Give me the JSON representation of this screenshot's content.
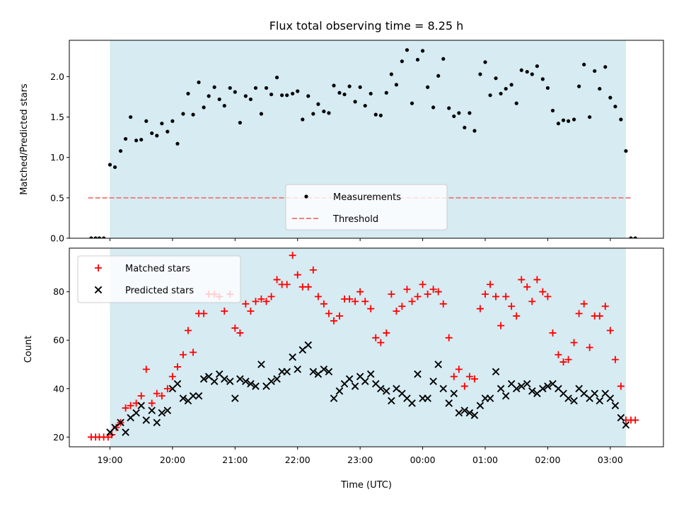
{
  "chart_data": [
    {
      "type": "scatter",
      "title": "Flux total observing time = 8.25 h",
      "ylabel": "Matched/Predicted stars",
      "xlabel": "",
      "xlim": [
        18.35,
        27.85
      ],
      "ylim": [
        0,
        2.45
      ],
      "yticks": [
        "0.0",
        "0.5",
        "1.0",
        "1.5",
        "2.0"
      ],
      "ytick_values": [
        0,
        0.5,
        1.0,
        1.5,
        2.0
      ],
      "shaded_span": [
        19.0,
        27.25
      ],
      "grid": false,
      "legend_position": "lower center",
      "series": [
        {
          "name": "Measurements",
          "style": "dot",
          "color": "#000000",
          "x": [
            18.7,
            18.77,
            18.83,
            18.9,
            19.0,
            19.08,
            19.17,
            19.25,
            19.33,
            19.42,
            19.5,
            19.58,
            19.67,
            19.75,
            19.83,
            19.92,
            20.0,
            20.08,
            20.17,
            20.25,
            20.33,
            20.42,
            20.5,
            20.58,
            20.67,
            20.75,
            20.83,
            20.92,
            21.0,
            21.08,
            21.17,
            21.25,
            21.33,
            21.42,
            21.5,
            21.58,
            21.67,
            21.75,
            21.83,
            21.92,
            22.0,
            22.08,
            22.17,
            22.25,
            22.33,
            22.42,
            22.5,
            22.58,
            22.67,
            22.75,
            22.83,
            22.92,
            23.0,
            23.08,
            23.17,
            23.25,
            23.33,
            23.42,
            23.5,
            23.58,
            23.67,
            23.75,
            23.83,
            23.92,
            24.0,
            24.08,
            24.17,
            24.25,
            24.33,
            24.42,
            24.5,
            24.58,
            24.67,
            24.75,
            24.83,
            24.92,
            25.0,
            25.08,
            25.17,
            25.25,
            25.33,
            25.42,
            25.5,
            25.58,
            25.67,
            25.75,
            25.83,
            25.92,
            26.0,
            26.08,
            26.17,
            26.25,
            26.33,
            26.42,
            26.5,
            26.58,
            26.67,
            26.75,
            26.83,
            26.92,
            27.0,
            27.08,
            27.17,
            27.25,
            27.33,
            27.4
          ],
          "y": [
            0,
            0,
            0,
            0,
            0.91,
            0.88,
            1.08,
            1.23,
            1.5,
            1.21,
            1.22,
            1.45,
            1.3,
            1.27,
            1.42,
            1.32,
            1.45,
            1.17,
            1.54,
            1.79,
            1.53,
            1.93,
            1.62,
            1.76,
            1.87,
            1.72,
            1.64,
            1.86,
            1.81,
            1.43,
            1.76,
            1.72,
            1.86,
            1.54,
            1.86,
            1.78,
            1.99,
            1.77,
            1.77,
            1.79,
            1.82,
            1.47,
            1.76,
            1.54,
            1.66,
            1.57,
            1.55,
            1.89,
            1.8,
            1.78,
            1.88,
            1.69,
            1.87,
            1.64,
            1.79,
            1.53,
            1.52,
            1.8,
            2.03,
            1.9,
            2.19,
            2.33,
            1.67,
            2.21,
            2.32,
            1.87,
            1.62,
            2.01,
            2.22,
            1.61,
            1.51,
            1.55,
            1.37,
            1.55,
            1.33,
            2.03,
            2.18,
            1.77,
            1.98,
            1.79,
            1.85,
            1.9,
            1.67,
            2.08,
            2.06,
            2.03,
            2.13,
            1.97,
            1.86,
            1.58,
            1.42,
            1.46,
            1.45,
            1.47,
            1.88,
            2.15,
            1.5,
            2.07,
            1.85,
            2.12,
            1.74,
            1.63,
            1.47,
            1.08,
            0,
            0
          ]
        },
        {
          "name": "Threshold",
          "style": "dashed-line",
          "color": "#f08080",
          "x": [
            18.65,
            27.35
          ],
          "y": [
            0.5,
            0.5
          ]
        }
      ]
    },
    {
      "type": "scatter",
      "title": "",
      "xlabel": "Time (UTC)",
      "ylabel": "Count",
      "xlim": [
        18.35,
        27.85
      ],
      "ylim": [
        16,
        98
      ],
      "xticks": [
        "19:00",
        "20:00",
        "21:00",
        "22:00",
        "23:00",
        "00:00",
        "01:00",
        "02:00",
        "03:00"
      ],
      "xtick_values": [
        19,
        20,
        21,
        22,
        23,
        24,
        25,
        26,
        27
      ],
      "yticks": [
        "20",
        "40",
        "60",
        "80"
      ],
      "ytick_values": [
        20,
        40,
        60,
        80
      ],
      "shaded_span": [
        19.0,
        27.25
      ],
      "grid": false,
      "legend_position": "upper left",
      "series": [
        {
          "name": "Matched stars",
          "style": "plus",
          "color": "#ff0000",
          "x": [
            18.7,
            18.77,
            18.83,
            18.9,
            18.97,
            19.03,
            19.1,
            19.17,
            19.25,
            19.33,
            19.42,
            19.5,
            19.58,
            19.67,
            19.75,
            19.83,
            19.92,
            20.0,
            20.08,
            20.17,
            20.25,
            20.33,
            20.42,
            20.5,
            20.58,
            20.67,
            20.75,
            20.83,
            20.92,
            21.0,
            21.08,
            21.17,
            21.25,
            21.33,
            21.42,
            21.5,
            21.58,
            21.67,
            21.75,
            21.83,
            21.92,
            22.0,
            22.08,
            22.17,
            22.25,
            22.33,
            22.42,
            22.5,
            22.58,
            22.67,
            22.75,
            22.83,
            22.92,
            23.0,
            23.08,
            23.17,
            23.25,
            23.33,
            23.42,
            23.5,
            23.58,
            23.67,
            23.75,
            23.83,
            23.92,
            24.0,
            24.08,
            24.17,
            24.25,
            24.33,
            24.42,
            24.5,
            24.58,
            24.67,
            24.75,
            24.83,
            24.92,
            25.0,
            25.08,
            25.17,
            25.25,
            25.33,
            25.42,
            25.5,
            25.58,
            25.67,
            25.75,
            25.83,
            25.92,
            26.0,
            26.08,
            26.17,
            26.25,
            26.33,
            26.42,
            26.5,
            26.58,
            26.67,
            26.75,
            26.83,
            26.92,
            27.0,
            27.08,
            27.17,
            27.25,
            27.33,
            27.4
          ],
          "y": [
            20,
            20,
            20,
            20,
            20,
            21,
            24,
            26,
            32,
            33,
            34,
            37,
            48,
            34,
            38,
            37,
            40,
            45,
            49,
            54,
            64,
            55,
            71,
            71,
            79,
            79,
            78,
            72,
            79,
            65,
            63,
            75,
            72,
            76,
            77,
            76,
            78,
            85,
            83,
            83,
            95,
            87,
            82,
            82,
            89,
            78,
            75,
            71,
            68,
            70,
            77,
            77,
            76,
            80,
            76,
            73,
            61,
            59,
            63,
            79,
            72,
            74,
            81,
            76,
            78,
            83,
            79,
            81,
            80,
            75,
            61,
            45,
            48,
            41,
            45,
            44,
            73,
            79,
            83,
            78,
            66,
            78,
            74,
            70,
            85,
            82,
            76,
            85,
            80,
            78,
            63,
            54,
            51,
            52,
            59,
            71,
            75,
            57,
            70,
            70,
            74,
            64,
            52,
            41,
            27,
            27,
            27
          ]
        },
        {
          "name": "Predicted stars",
          "style": "x",
          "color": "#000000",
          "x": [
            19.0,
            19.08,
            19.17,
            19.25,
            19.33,
            19.42,
            19.5,
            19.58,
            19.67,
            19.75,
            19.83,
            19.92,
            20.0,
            20.08,
            20.17,
            20.25,
            20.33,
            20.42,
            20.5,
            20.58,
            20.67,
            20.75,
            20.83,
            20.92,
            21.0,
            21.08,
            21.17,
            21.25,
            21.33,
            21.42,
            21.5,
            21.58,
            21.67,
            21.75,
            21.83,
            21.92,
            22.0,
            22.08,
            22.17,
            22.25,
            22.33,
            22.42,
            22.5,
            22.58,
            22.67,
            22.75,
            22.83,
            22.92,
            23.0,
            23.08,
            23.17,
            23.25,
            23.33,
            23.42,
            23.5,
            23.58,
            23.67,
            23.75,
            23.83,
            23.92,
            24.0,
            24.08,
            24.17,
            24.25,
            24.33,
            24.42,
            24.5,
            24.58,
            24.67,
            24.75,
            24.83,
            24.92,
            25.0,
            25.08,
            25.17,
            25.25,
            25.33,
            25.42,
            25.5,
            25.58,
            25.67,
            25.75,
            25.83,
            25.92,
            26.0,
            26.08,
            26.17,
            26.25,
            26.33,
            26.42,
            26.5,
            26.58,
            26.67,
            26.75,
            26.83,
            26.92,
            27.0,
            27.08,
            27.17,
            27.25
          ],
          "y": [
            22,
            24,
            26,
            22,
            28,
            30,
            33,
            27,
            31,
            26,
            30,
            31,
            40,
            42,
            36,
            35,
            37,
            37,
            44,
            45,
            43,
            46,
            44,
            43,
            36,
            44,
            43,
            42,
            41,
            50,
            41,
            43,
            44,
            47,
            47,
            53,
            48,
            56,
            58,
            47,
            46,
            48,
            47,
            36,
            39,
            42,
            44,
            41,
            45,
            43,
            46,
            42,
            40,
            39,
            35,
            40,
            38,
            36,
            34,
            46,
            36,
            36,
            43,
            50,
            40,
            34,
            38,
            30,
            31,
            30,
            29,
            33,
            36,
            36,
            47,
            40,
            37,
            42,
            40,
            41,
            42,
            39,
            38,
            40,
            41,
            42,
            40,
            38,
            36,
            35,
            40,
            38,
            36,
            38,
            35,
            38,
            36,
            33,
            28,
            25
          ]
        }
      ]
    }
  ]
}
